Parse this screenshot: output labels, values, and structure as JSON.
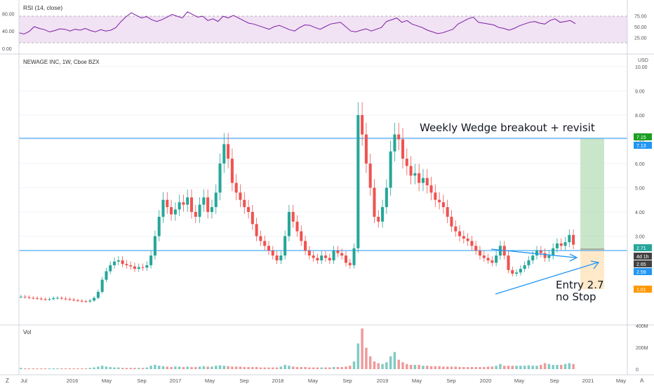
{
  "chart_data": [
    {
      "type": "line",
      "title": "RSI (14, close)",
      "ylim": [
        0,
        100
      ],
      "y_axis_ticks": [
        "75.00",
        "50.00",
        "25.00"
      ],
      "left_ticks": [
        "80.00",
        "40.00",
        "0.00"
      ],
      "overbought": 70,
      "oversold": 30,
      "series": [
        {
          "values": [
            36,
            33,
            39,
            50,
            46,
            43,
            38,
            41,
            45,
            44,
            40,
            44,
            42,
            46,
            41,
            38,
            43,
            40,
            42,
            48,
            62,
            73,
            82,
            76,
            70,
            73,
            66,
            62,
            66,
            72,
            78,
            74,
            70,
            84,
            78,
            72,
            74,
            64,
            68,
            62,
            74,
            70,
            76,
            70,
            64,
            58,
            56,
            52,
            48,
            44,
            50,
            53,
            48,
            43,
            40,
            48,
            54,
            53,
            48,
            44,
            50,
            56,
            58,
            60,
            50,
            40,
            38,
            42,
            45,
            40,
            44,
            48,
            62,
            66,
            70,
            60,
            64,
            56,
            52,
            48,
            42,
            38,
            34,
            36,
            40,
            44,
            56,
            62,
            68,
            72,
            60,
            58,
            56,
            54,
            48,
            46,
            42,
            46,
            52,
            56,
            60,
            62,
            58,
            56,
            64,
            68,
            60,
            62,
            64,
            57
          ]
        }
      ]
    },
    {
      "type": "bar",
      "title": "NEWAGE INC, 1W, Cboe BZX",
      "currency": "USD",
      "xlabel": "",
      "ylabel": "",
      "ylim": [
        0,
        10
      ],
      "y_ticks": [
        "10.00",
        "9.00",
        "8.00",
        "7.00",
        "6.00",
        "5.00",
        "4.00",
        "3.00"
      ],
      "x_tick_labels": [
        "Jul",
        "2016",
        "May",
        "Sep",
        "2017",
        "May",
        "Sep",
        "2018",
        "May",
        "Sep",
        "2019",
        "May",
        "Sep",
        "2020",
        "May",
        "Sep",
        "2021",
        "May"
      ],
      "price_points": [
        0.5,
        0.48,
        0.45,
        0.44,
        0.42,
        0.4,
        0.38,
        0.4,
        0.44,
        0.45,
        0.42,
        0.4,
        0.38,
        0.35,
        0.33,
        0.31,
        0.3,
        0.34,
        0.45,
        0.7,
        1.2,
        1.55,
        1.8,
        1.95,
        2.0,
        1.85,
        1.8,
        1.75,
        1.65,
        1.72,
        1.7,
        1.8,
        2.2,
        3.0,
        3.8,
        4.5,
        4.2,
        3.9,
        4.1,
        4.4,
        4.3,
        4.6,
        4.0,
        3.8,
        4.3,
        4.6,
        4.0,
        4.2,
        4.8,
        6.0,
        6.8,
        6.2,
        5.2,
        4.8,
        4.5,
        4.2,
        4.0,
        3.5,
        3.0,
        2.8,
        2.6,
        2.4,
        2.2,
        2.0,
        2.2,
        3.0,
        4.0,
        3.6,
        3.2,
        2.8,
        2.4,
        2.2,
        2.1,
        2.0,
        2.2,
        2.1,
        2.0,
        2.4,
        2.3,
        2.2,
        1.9,
        1.8,
        2.5,
        8.0,
        7.2,
        6.0,
        5.0,
        3.8,
        3.6,
        4.2,
        5.0,
        6.5,
        7.2,
        7.0,
        6.2,
        5.9,
        5.5,
        5.6,
        5.2,
        5.4,
        5.1,
        4.8,
        4.5,
        4.4,
        4.2,
        3.8,
        3.4,
        3.2,
        3.0,
        2.9,
        2.8,
        2.6,
        2.4,
        2.2,
        2.1,
        2.0,
        1.9,
        2.2,
        2.6,
        2.2,
        1.6,
        1.45,
        1.5,
        1.65,
        1.8,
        2.0,
        2.2,
        2.4,
        2.3,
        2.1,
        2.2,
        2.5,
        2.7,
        2.6,
        2.75,
        3.05,
        2.65
      ],
      "price_labels": [
        {
          "text": "7.15",
          "value": 7.15,
          "color": "#1b9e22"
        },
        {
          "text": "7.13",
          "value": 7.13,
          "color": "#2196f3"
        },
        {
          "text": "2.71",
          "value": 2.71,
          "color": "#26a69a"
        },
        {
          "text": "4d 1h",
          "value": 2.68,
          "color": "#424242"
        },
        {
          "text": "2.65",
          "value": 2.65,
          "color": "#424242"
        },
        {
          "text": "2.59",
          "value": 2.59,
          "color": "#2196f3"
        },
        {
          "text": "1.01",
          "value": 1.01,
          "color": "#ff9800"
        }
      ],
      "horizontal_lines": [
        7.13,
        2.71
      ],
      "annotations": [
        "Weekly Wedge breakout + revisit",
        "Entry 2.7",
        "no Stop"
      ],
      "colors": {
        "up": "#26a69a",
        "down": "#ef5350",
        "lines": "#2196f3",
        "rsi": "#7b1fa2",
        "target_zone": "#a5d6a7",
        "stop_zone": "#ffe0b2"
      }
    },
    {
      "type": "bar",
      "title": "Vol",
      "y_ticks": [
        "400M",
        "200M",
        "0"
      ],
      "volume": [
        3,
        2,
        2,
        2,
        2,
        2,
        2,
        2,
        2,
        2,
        2,
        2,
        2,
        2,
        2,
        2,
        2,
        3,
        4,
        6,
        8,
        6,
        5,
        4,
        4,
        3,
        3,
        3,
        3,
        3,
        3,
        4,
        8,
        10,
        8,
        7,
        6,
        5,
        6,
        6,
        5,
        6,
        5,
        5,
        6,
        7,
        6,
        6,
        8,
        9,
        8,
        7,
        6,
        6,
        6,
        5,
        5,
        5,
        5,
        4,
        4,
        4,
        4,
        4,
        6,
        10,
        8,
        6,
        5,
        5,
        5,
        4,
        4,
        4,
        4,
        4,
        4,
        5,
        5,
        5,
        6,
        8,
        18,
        60,
        95,
        50,
        30,
        18,
        14,
        12,
        16,
        30,
        40,
        22,
        16,
        12,
        10,
        10,
        10,
        8,
        8,
        7,
        7,
        7,
        6,
        6,
        6,
        6,
        5,
        5,
        5,
        5,
        5,
        5,
        5,
        6,
        6,
        8,
        12,
        8,
        8,
        8,
        8,
        8,
        8,
        9,
        8,
        8,
        10,
        14,
        12,
        10,
        10,
        10,
        12,
        14,
        12
      ]
    }
  ]
}
